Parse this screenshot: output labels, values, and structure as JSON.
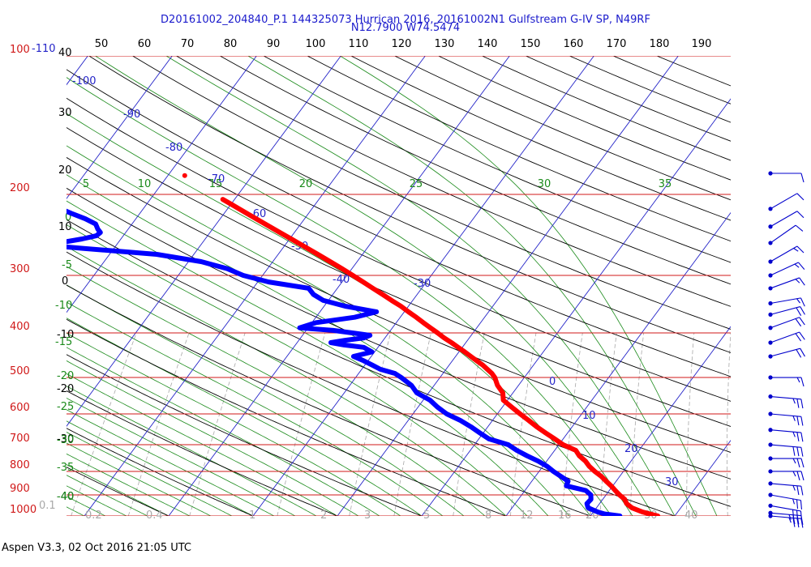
{
  "header": {
    "line1": "D20161002_204840_P.1 144325073 Hurrican 2016, 20161002N1 Gulfstream G-IV SP, N49RF",
    "line2": "N12.7900 W74.5474"
  },
  "footer": "Aspen V3.3, 02 Oct 2016  21:05 UTC",
  "colors": {
    "isobar": "#d01818",
    "isotherm": "#2424c8",
    "dry_adiabat": "#000000",
    "moist_adiabat": "#1a8a1a",
    "mixing_ratio": "#a8a8a8",
    "temperature": "#ff0000",
    "dewpoint": "#0000ff",
    "wind": "#0000cc"
  },
  "chart_data": {
    "type": "skew-t log-p",
    "pressure_range_hpa": [
      1000,
      100
    ],
    "isobars_hpa": [
      "100",
      "200",
      "300",
      "400",
      "500",
      "600",
      "700",
      "800",
      "900",
      "1000"
    ],
    "isotherm_labels_bottom": [
      "10",
      "20",
      "30"
    ],
    "isotherm_labels_left": [
      "-110",
      "-100",
      "-90",
      "-80",
      "-70",
      "-60",
      "-50",
      "-40",
      "-30",
      "0"
    ],
    "top_axis_labels": [
      "50",
      "60",
      "70",
      "80",
      "90",
      "100",
      "110",
      "120",
      "130",
      "140",
      "150",
      "160",
      "170",
      "180",
      "190"
    ],
    "left_axis_labels": [
      "40",
      "30",
      "20",
      "10",
      "0",
      "-10",
      "-20",
      "-30",
      "-40"
    ],
    "moist_labels_top": [
      "5",
      "10",
      "15",
      "20",
      "25",
      "30",
      "35"
    ],
    "moist_labels_left": [
      "0",
      "-5",
      "-10",
      "-15",
      "-20",
      "-25",
      "-30",
      "-35",
      "-40"
    ],
    "mixing_ratio_labels": [
      "0.1",
      "0.2",
      "0.4",
      "1",
      "2",
      "3",
      "5",
      "8",
      "12",
      "16",
      "20",
      "30",
      "40"
    ],
    "temperature_profile": {
      "name": "Temperature",
      "p": [
        1000,
        980,
        960,
        940,
        920,
        900,
        880,
        860,
        840,
        820,
        800,
        780,
        760,
        740,
        720,
        700,
        680,
        660,
        640,
        620,
        600,
        580,
        560,
        540,
        520,
        500,
        490,
        480,
        470,
        460,
        450,
        440,
        430,
        420,
        410,
        400,
        390,
        380,
        370,
        360,
        350,
        340,
        330,
        320,
        310,
        300,
        290,
        280,
        270,
        260,
        250,
        240,
        230,
        220,
        210,
        205
      ],
      "t": [
        28.0,
        25.8,
        24.2,
        23.2,
        22.6,
        21.6,
        20.7,
        19.8,
        18.8,
        17.8,
        16.6,
        15.5,
        14.6,
        13.4,
        12.5,
        10.5,
        9.0,
        7.4,
        5.8,
        4.3,
        2.7,
        1.1,
        -0.5,
        -1.2,
        -2.5,
        -3.5,
        -4.2,
        -5.1,
        -6.0,
        -7.1,
        -8.2,
        -9.3,
        -10.5,
        -11.7,
        -13.0,
        -14.2,
        -15.5,
        -16.8,
        -18.1,
        -19.5,
        -20.9,
        -22.5,
        -24.1,
        -25.8,
        -27.5,
        -29.3,
        -31.2,
        -33.2,
        -35.3,
        -37.5,
        -39.8,
        -42.2,
        -44.7,
        -47.3,
        -50.0,
        -51.4
      ]
    },
    "temperature_outlier": {
      "p": 182,
      "t": -58.0
    },
    "dewpoint_profile": {
      "name": "Dewpoint",
      "p": [
        1000,
        990,
        980,
        960,
        940,
        920,
        900,
        880,
        860,
        840,
        820,
        800,
        780,
        760,
        740,
        720,
        700,
        680,
        660,
        640,
        620,
        600,
        580,
        560,
        540,
        520,
        500,
        490,
        480,
        470,
        460,
        450,
        440,
        430,
        425,
        420,
        415,
        410,
        405,
        400,
        395,
        390,
        380,
        370,
        360,
        350,
        340,
        330,
        320,
        310,
        300,
        290,
        280,
        270,
        262,
        257,
        254,
        250,
        246,
        242,
        238,
        232,
        226,
        220,
        215,
        210
      ],
      "td": [
        23.5,
        21.5,
        20.5,
        19.0,
        18.5,
        18.6,
        18.2,
        17.2,
        14.5,
        14.3,
        13.0,
        11.7,
        10.5,
        9.0,
        7.2,
        5.5,
        4.0,
        1.2,
        -0.4,
        -2.0,
        -3.8,
        -6.0,
        -7.7,
        -9.2,
        -11.4,
        -12.7,
        -14.6,
        -15.7,
        -17.8,
        -19.1,
        -20.5,
        -22.1,
        -20.3,
        -21.7,
        -24.2,
        -26.0,
        -24.5,
        -22.5,
        -22.0,
        -24.3,
        -26.8,
        -31.0,
        -29.5,
        -25.4,
        -23.3,
        -27.5,
        -30.6,
        -32.3,
        -33.4,
        -38.7,
        -42.3,
        -44.8,
        -48.5,
        -54.4,
        -63.7,
        -69.5,
        -66.5,
        -64.6,
        -63.2,
        -63.0,
        -63.6,
        -64.3,
        -66.0,
        -68.1,
        -69.8,
        -71.7
      ]
    },
    "wind_barbs": [
      {
        "p": 1000,
        "speed_kt": 35,
        "dir_deg": 95
      },
      {
        "p": 985,
        "speed_kt": 35,
        "dir_deg": 95
      },
      {
        "p": 950,
        "speed_kt": 30,
        "dir_deg": 100
      },
      {
        "p": 900,
        "speed_kt": 25,
        "dir_deg": 100
      },
      {
        "p": 850,
        "speed_kt": 25,
        "dir_deg": 95
      },
      {
        "p": 800,
        "speed_kt": 25,
        "dir_deg": 90
      },
      {
        "p": 750,
        "speed_kt": 25,
        "dir_deg": 90
      },
      {
        "p": 700,
        "speed_kt": 30,
        "dir_deg": 95
      },
      {
        "p": 650,
        "speed_kt": 25,
        "dir_deg": 95
      },
      {
        "p": 600,
        "speed_kt": 25,
        "dir_deg": 95
      },
      {
        "p": 550,
        "speed_kt": 25,
        "dir_deg": 95
      },
      {
        "p": 500,
        "speed_kt": 15,
        "dir_deg": 90
      },
      {
        "p": 450,
        "speed_kt": 20,
        "dir_deg": 75
      },
      {
        "p": 420,
        "speed_kt": 20,
        "dir_deg": 70
      },
      {
        "p": 390,
        "speed_kt": 20,
        "dir_deg": 70
      },
      {
        "p": 365,
        "speed_kt": 20,
        "dir_deg": 75
      },
      {
        "p": 345,
        "speed_kt": 15,
        "dir_deg": 80
      },
      {
        "p": 320,
        "speed_kt": 15,
        "dir_deg": 70
      },
      {
        "p": 300,
        "speed_kt": 15,
        "dir_deg": 65
      },
      {
        "p": 280,
        "speed_kt": 15,
        "dir_deg": 60
      },
      {
        "p": 255,
        "speed_kt": 10,
        "dir_deg": 55
      },
      {
        "p": 235,
        "speed_kt": 10,
        "dir_deg": 60
      },
      {
        "p": 215,
        "speed_kt": 10,
        "dir_deg": 60
      },
      {
        "p": 180,
        "speed_kt": 10,
        "dir_deg": 90
      }
    ]
  }
}
